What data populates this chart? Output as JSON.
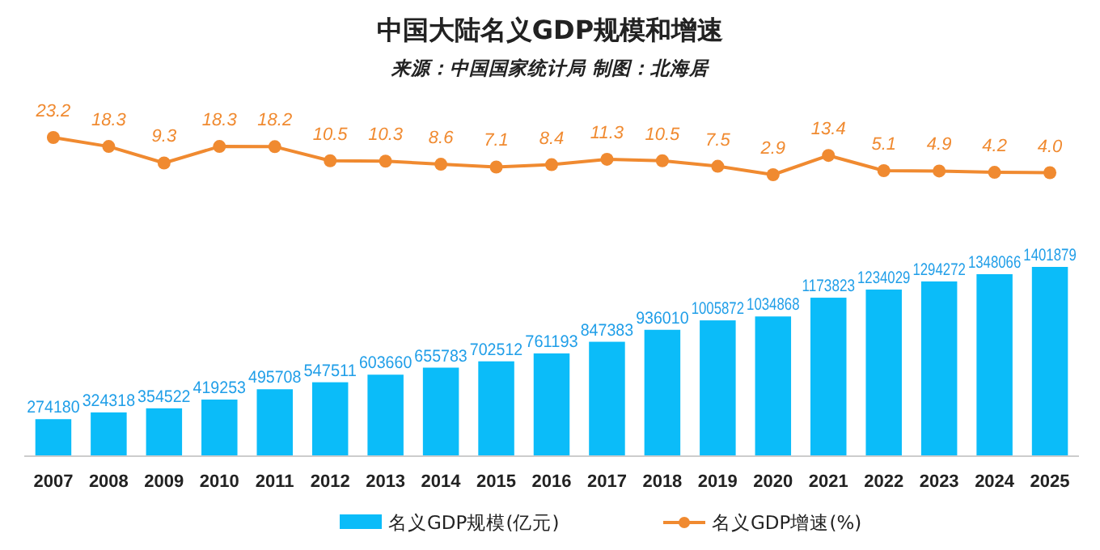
{
  "chart_data": [
    {
      "type": "line",
      "title": "中国大陆名义GDP规模和增速",
      "subtitle": "来源：中国国家统计局 制图：北海居",
      "categories": [
        null,
        null,
        null,
        null,
        null,
        null,
        null,
        null,
        null,
        null,
        null,
        null,
        null,
        null,
        null,
        null,
        null,
        null,
        null
      ],
      "series": [
        {
          "name": "名义GDP增速(%)",
          "color": "#f08a30",
          "values": [
            23.2,
            18.3,
            9.3,
            18.3,
            18.2,
            10.5,
            10.3,
            8.6,
            7.1,
            8.4,
            11.3,
            10.5,
            7.5,
            2.9,
            13.4,
            5.1,
            4.9,
            4.2,
            4.0
          ],
          "value_labels": [
            "23.2",
            "18.3",
            "9.3",
            "18.3",
            "18.2",
            "10.5",
            "10.3",
            "8.6",
            "7.1",
            "8.4",
            "11.3",
            "10.5",
            "7.5",
            "2.9",
            "13.4",
            "5.1",
            "4.9",
            "4.2",
            "4.0"
          ]
        }
      ],
      "marker": "circle",
      "legend": "bottom",
      "tick_labels": false
    },
    {
      "type": "bar",
      "categories": [
        "2007",
        "2008",
        "2009",
        "2010",
        "2011",
        "2012",
        "2013",
        "2014",
        "2015",
        "2016",
        "2017",
        "2018",
        "2019",
        "2020",
        "2021",
        "2022",
        "2023",
        "2024",
        "2025"
      ],
      "series": [
        {
          "name": "名义GDP规模(亿元)",
          "color": "#0bbcf9",
          "values": [
            274180,
            324318,
            354522,
            419253,
            495708,
            547511,
            603660,
            655783,
            702512,
            761193,
            847383,
            936010,
            1005872,
            1034868,
            1173823,
            1234029,
            1294272,
            1348066,
            1401879
          ]
        }
      ],
      "data_labels": true,
      "legend": "bottom",
      "tick_labels": "x"
    }
  ]
}
